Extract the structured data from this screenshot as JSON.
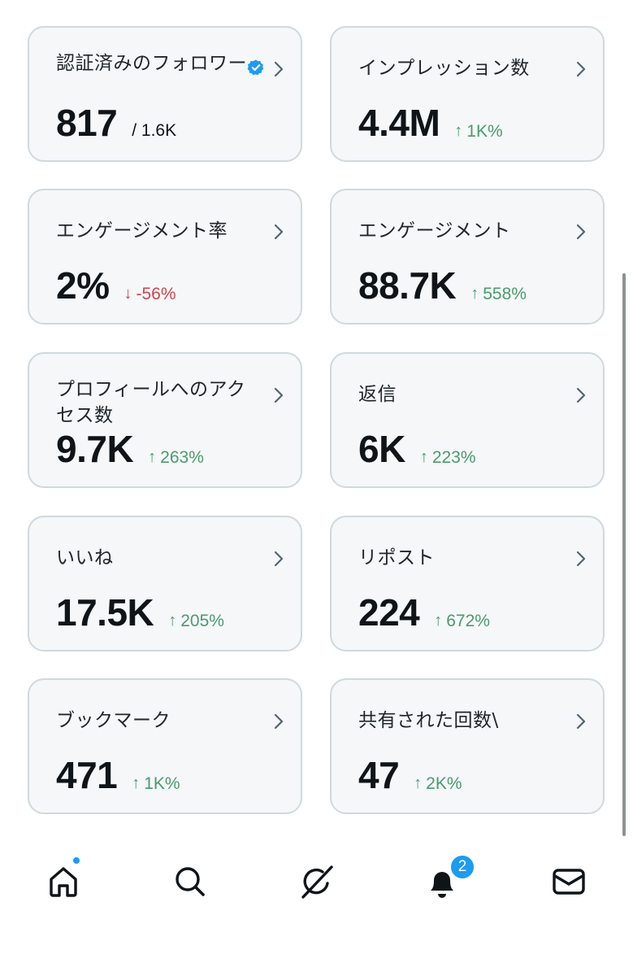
{
  "cards": [
    {
      "label": "認証済みのフォロワー",
      "value": "817",
      "sub": "/ 1.6K"
    },
    {
      "label": "インプレッション数",
      "value": "4.4M",
      "delta": "1K%",
      "direction": "up"
    },
    {
      "label": "エンゲージメント率",
      "value": "2%",
      "delta": "-56%",
      "direction": "down"
    },
    {
      "label": "エンゲージメント",
      "value": "88.7K",
      "delta": "558%",
      "direction": "up"
    },
    {
      "label": "プロフィールへのアクセス数",
      "value": "9.7K",
      "delta": "263%",
      "direction": "up"
    },
    {
      "label": "返信",
      "value": "6K",
      "delta": "223%",
      "direction": "up"
    },
    {
      "label": "いいね",
      "value": "17.5K",
      "delta": "205%",
      "direction": "up"
    },
    {
      "label": "リポスト",
      "value": "224",
      "delta": "672%",
      "direction": "up"
    },
    {
      "label": "ブックマーク",
      "value": "471",
      "delta": "1K%",
      "direction": "up"
    },
    {
      "label": "共有された回数\\",
      "value": "47",
      "delta": "2K%",
      "direction": "up"
    }
  ],
  "arrows": {
    "up": "↑",
    "down": "↓"
  },
  "colors": {
    "up": "#4a9b6e",
    "down": "#d0454b",
    "accent": "#1d9bf0"
  },
  "nav": {
    "items": [
      "home-icon",
      "search-icon",
      "grok-icon",
      "bell-icon",
      "mail-icon"
    ],
    "notification_badge": "2"
  }
}
